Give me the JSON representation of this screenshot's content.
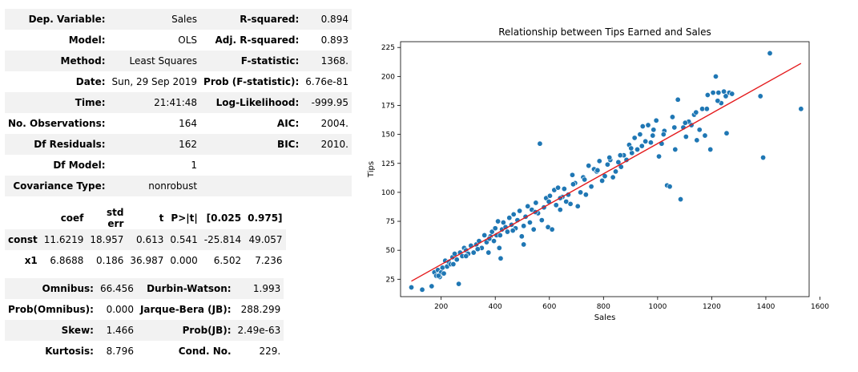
{
  "summary1": [
    {
      "l1": "Dep. Variable:",
      "v1": "Sales",
      "l2": "R-squared:",
      "v2": "0.894"
    },
    {
      "l1": "Model:",
      "v1": "OLS",
      "l2": "Adj. R-squared:",
      "v2": "0.893"
    },
    {
      "l1": "Method:",
      "v1": "Least Squares",
      "l2": "F-statistic:",
      "v2": "1368."
    },
    {
      "l1": "Date:",
      "v1": "Sun, 29 Sep 2019",
      "l2": "Prob (F-statistic):",
      "v2": "6.76e-81"
    },
    {
      "l1": "Time:",
      "v1": "21:41:48",
      "l2": "Log-Likelihood:",
      "v2": "-999.95"
    },
    {
      "l1": "No. Observations:",
      "v1": "164",
      "l2": "AIC:",
      "v2": "2004."
    },
    {
      "l1": "Df Residuals:",
      "v1": "162",
      "l2": "BIC:",
      "v2": "2010."
    },
    {
      "l1": "Df Model:",
      "v1": "1",
      "l2": "",
      "v2": ""
    },
    {
      "l1": "Covariance Type:",
      "v1": "nonrobust",
      "l2": "",
      "v2": ""
    }
  ],
  "coef_table": {
    "headers": [
      "",
      "coef",
      "std err",
      "t",
      "P>|t|",
      "[0.025",
      "0.975]"
    ],
    "rows": [
      [
        "const",
        "11.6219",
        "18.957",
        "0.613",
        "0.541",
        "-25.814",
        "49.057"
      ],
      [
        "x1",
        "6.8688",
        "0.186",
        "36.987",
        "0.000",
        "6.502",
        "7.236"
      ]
    ]
  },
  "summary3": [
    {
      "l1": "Omnibus:",
      "v1": "66.456",
      "l2": "Durbin-Watson:",
      "v2": "1.993"
    },
    {
      "l1": "Prob(Omnibus):",
      "v1": "0.000",
      "l2": "Jarque-Bera (JB):",
      "v2": "288.299"
    },
    {
      "l1": "Skew:",
      "v1": "1.466",
      "l2": "Prob(JB):",
      "v2": "2.49e-63"
    },
    {
      "l1": "Kurtosis:",
      "v1": "8.796",
      "l2": "Cond. No.",
      "v2": "229."
    }
  ],
  "chart_data": {
    "type": "scatter",
    "title": "Relationship between Tips Earned and Sales",
    "xlabel": "Sales",
    "ylabel": "Tips",
    "xlim": [
      50,
      1560
    ],
    "ylim": [
      10,
      230
    ],
    "xticks": [
      200,
      400,
      600,
      800,
      1000,
      1200,
      1400,
      1600
    ],
    "yticks": [
      25,
      50,
      75,
      100,
      125,
      150,
      175,
      200,
      225
    ],
    "grid": false,
    "colors": {
      "points": "#1f77b4",
      "line": "#e41a1c"
    },
    "regression_line": {
      "intercept": 11.6219,
      "slope": 0.1305,
      "x_range": [
        90,
        1530
      ]
    },
    "points": [
      [
        90,
        18
      ],
      [
        130,
        16
      ],
      [
        165,
        19
      ],
      [
        175,
        31
      ],
      [
        182,
        28
      ],
      [
        188,
        33
      ],
      [
        195,
        27
      ],
      [
        200,
        31
      ],
      [
        205,
        35
      ],
      [
        210,
        30
      ],
      [
        215,
        41
      ],
      [
        222,
        36
      ],
      [
        228,
        40
      ],
      [
        235,
        38
      ],
      [
        242,
        44
      ],
      [
        250,
        47
      ],
      [
        258,
        42
      ],
      [
        265,
        21
      ],
      [
        270,
        48
      ],
      [
        278,
        45
      ],
      [
        285,
        52
      ],
      [
        292,
        50
      ],
      [
        300,
        47
      ],
      [
        310,
        54
      ],
      [
        320,
        48
      ],
      [
        330,
        55
      ],
      [
        340,
        58
      ],
      [
        350,
        52
      ],
      [
        360,
        63
      ],
      [
        368,
        57
      ],
      [
        375,
        48
      ],
      [
        382,
        62
      ],
      [
        388,
        66
      ],
      [
        395,
        58
      ],
      [
        400,
        69
      ],
      [
        405,
        63
      ],
      [
        410,
        75
      ],
      [
        415,
        52
      ],
      [
        420,
        43
      ],
      [
        425,
        68
      ],
      [
        430,
        74
      ],
      [
        438,
        70
      ],
      [
        445,
        66
      ],
      [
        452,
        78
      ],
      [
        460,
        72
      ],
      [
        468,
        81
      ],
      [
        475,
        69
      ],
      [
        482,
        76
      ],
      [
        490,
        84
      ],
      [
        498,
        62
      ],
      [
        505,
        55
      ],
      [
        512,
        79
      ],
      [
        520,
        88
      ],
      [
        528,
        74
      ],
      [
        535,
        85
      ],
      [
        542,
        68
      ],
      [
        550,
        91
      ],
      [
        558,
        82
      ],
      [
        565,
        142
      ],
      [
        572,
        76
      ],
      [
        580,
        87
      ],
      [
        588,
        95
      ],
      [
        595,
        70
      ],
      [
        602,
        97
      ],
      [
        610,
        68
      ],
      [
        618,
        102
      ],
      [
        625,
        89
      ],
      [
        632,
        104
      ],
      [
        640,
        85
      ],
      [
        648,
        96
      ],
      [
        655,
        103
      ],
      [
        662,
        92
      ],
      [
        670,
        98
      ],
      [
        678,
        90
      ],
      [
        685,
        115
      ],
      [
        695,
        108
      ],
      [
        705,
        88
      ],
      [
        715,
        100
      ],
      [
        725,
        113
      ],
      [
        735,
        98
      ],
      [
        745,
        123
      ],
      [
        755,
        105
      ],
      [
        765,
        120
      ],
      [
        775,
        118
      ],
      [
        785,
        127
      ],
      [
        795,
        110
      ],
      [
        805,
        114
      ],
      [
        815,
        124
      ],
      [
        825,
        128
      ],
      [
        835,
        113
      ],
      [
        845,
        118
      ],
      [
        855,
        126
      ],
      [
        865,
        122
      ],
      [
        875,
        132
      ],
      [
        885,
        128
      ],
      [
        895,
        141
      ],
      [
        905,
        134
      ],
      [
        915,
        147
      ],
      [
        925,
        137
      ],
      [
        935,
        150
      ],
      [
        945,
        157
      ],
      [
        955,
        144
      ],
      [
        965,
        158
      ],
      [
        975,
        143
      ],
      [
        985,
        154
      ],
      [
        995,
        162
      ],
      [
        1005,
        131
      ],
      [
        1015,
        142
      ],
      [
        1025,
        153
      ],
      [
        1035,
        106
      ],
      [
        1045,
        105
      ],
      [
        1055,
        165
      ],
      [
        1065,
        137
      ],
      [
        1075,
        180
      ],
      [
        1085,
        94
      ],
      [
        1095,
        156
      ],
      [
        1105,
        148
      ],
      [
        1115,
        161
      ],
      [
        1125,
        158
      ],
      [
        1135,
        167
      ],
      [
        1145,
        145
      ],
      [
        1155,
        154
      ],
      [
        1165,
        172
      ],
      [
        1175,
        149
      ],
      [
        1185,
        184
      ],
      [
        1195,
        137
      ],
      [
        1205,
        186
      ],
      [
        1215,
        200
      ],
      [
        1225,
        186
      ],
      [
        1235,
        177
      ],
      [
        1245,
        187
      ],
      [
        1255,
        151
      ],
      [
        1265,
        186
      ],
      [
        1275,
        185
      ],
      [
        1380,
        183
      ],
      [
        1390,
        130
      ],
      [
        1415,
        220
      ],
      [
        1530,
        172
      ],
      [
        190,
        28
      ],
      [
        245,
        38
      ],
      [
        292,
        45
      ],
      [
        335,
        51
      ],
      [
        378,
        60
      ],
      [
        418,
        63
      ],
      [
        465,
        67
      ],
      [
        505,
        71
      ],
      [
        548,
        83
      ],
      [
        598,
        92
      ],
      [
        640,
        95
      ],
      [
        688,
        107
      ],
      [
        730,
        111
      ],
      [
        778,
        119
      ],
      [
        822,
        130
      ],
      [
        862,
        132
      ],
      [
        902,
        138
      ],
      [
        942,
        140
      ],
      [
        982,
        149
      ],
      [
        1022,
        150
      ],
      [
        1062,
        156
      ],
      [
        1102,
        160
      ],
      [
        1142,
        169
      ],
      [
        1182,
        172
      ],
      [
        1222,
        179
      ],
      [
        1252,
        183
      ]
    ]
  }
}
